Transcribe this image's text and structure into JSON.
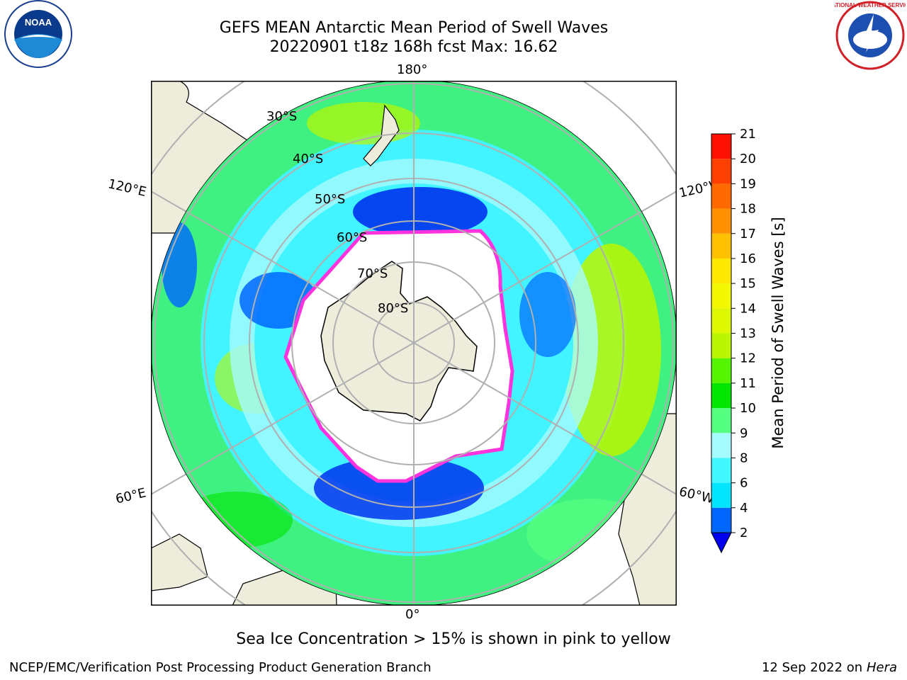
{
  "title": {
    "line1": "GEFS MEAN Antarctic Mean Period of Swell Waves",
    "line2": "20220901 t18z 168h fcst   Max: 16.62"
  },
  "logos": {
    "left": {
      "icon": "noaa-logo",
      "text": "NOAA"
    },
    "right": {
      "icon": "nws-logo-icon",
      "text": "NATIONAL WEATHER SERVICE"
    }
  },
  "map": {
    "projection": "south-polar-stereographic",
    "longitude_labels": {
      "top": "180°",
      "bottom": "0°",
      "upper_left": "120°E",
      "upper_right": "120°W",
      "lower_left": "60°E",
      "lower_right": "60°W"
    },
    "latitude_labels": [
      "30°S",
      "40°S",
      "50°S",
      "60°S",
      "70°S",
      "80°S"
    ],
    "colors": {
      "land": "#eeeddc",
      "ice_free_ocean_masked": "#ffffff",
      "sea_ice_edge": "#ff33dd",
      "grid": "#b0b0b0"
    }
  },
  "colorbar": {
    "label": "Mean Period of Swell Waves [s]",
    "ticks": [
      "2",
      "4",
      "6",
      "8",
      "9",
      "10",
      "11",
      "12",
      "13",
      "14",
      "15",
      "16",
      "17",
      "18",
      "19",
      "20",
      "21"
    ],
    "colors": [
      "#0066ff",
      "#00e4ff",
      "#42f7ff",
      "#a6fbff",
      "#55ff80",
      "#00e600",
      "#55f400",
      "#bbf600",
      "#ddf800",
      "#f2f800",
      "#ffe800",
      "#ffc000",
      "#ff9000",
      "#ff6a00",
      "#ff4000",
      "#ff1000"
    ],
    "under_color": "#0000ee"
  },
  "note": "Sea Ice Concentration > 15% is shown in pink to yellow",
  "footer": {
    "left": "NCEP/EMC/Verification Post Processing Product Generation Branch",
    "right_date": "12 Sep 2022 on",
    "right_host": "Hera"
  }
}
